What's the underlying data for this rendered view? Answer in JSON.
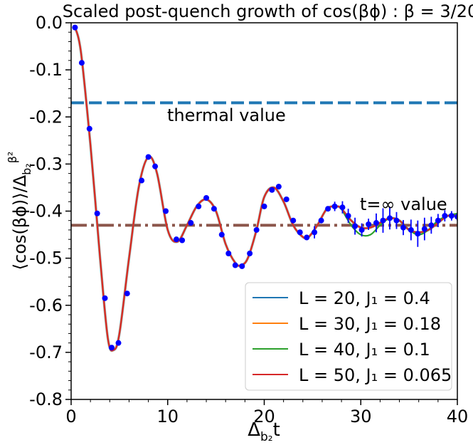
{
  "chart_data": {
    "type": "line",
    "title": "Scaled post-quench growth of cos(βϕ) : β = 3/20",
    "xlabel": "Δb₂t",
    "ylabel": "⟨cos(βϕ)⟩/Δb₂^β²",
    "xlim": [
      0,
      40
    ],
    "ylim": [
      -0.8,
      0.0
    ],
    "xticks": [
      0,
      10,
      20,
      30,
      40
    ],
    "yticks": [
      0.0,
      -0.1,
      -0.2,
      -0.3,
      -0.4,
      -0.5,
      -0.6,
      -0.7,
      -0.8
    ],
    "ytick_labels": [
      "0.0",
      "-0.1",
      "-0.2",
      "-0.3",
      "-0.4",
      "-0.5",
      "-0.6",
      "-0.7",
      "-0.8"
    ],
    "grid": false,
    "legend_position": "bottom-right",
    "legend": [
      {
        "label": "L = 20, J₁ = 0.4",
        "color": "#1f77b4"
      },
      {
        "label": "L = 30, J₁ = 0.18",
        "color": "#ff7f0e"
      },
      {
        "label": "L = 40, J₁ = 0.1",
        "color": "#2ca02c"
      },
      {
        "label": "L = 50, J₁ = 0.065",
        "color": "#d62728"
      }
    ],
    "reference_lines": [
      {
        "label": "thermal value",
        "y": -0.17,
        "color": "#1f77b4",
        "style": "dashed"
      },
      {
        "label": "t=∞ value",
        "y": -0.43,
        "color": "#8c564b",
        "style": "dashdot"
      }
    ],
    "main_curve": {
      "color": "#d62728",
      "x": [
        0.3,
        1,
        2,
        3,
        3.8,
        4.4,
        5,
        6,
        7,
        8,
        8.9,
        10,
        11,
        12,
        13,
        14,
        15,
        16,
        17,
        17.6,
        18.3,
        19.2,
        20,
        21,
        22,
        23,
        24,
        24.6,
        25.5,
        26.5,
        27.5,
        28,
        29,
        30,
        31,
        32,
        33,
        34,
        35,
        36,
        37,
        38,
        39,
        40
      ],
      "y": [
        -0.005,
        -0.06,
        -0.26,
        -0.5,
        -0.67,
        -0.695,
        -0.66,
        -0.5,
        -0.35,
        -0.285,
        -0.32,
        -0.44,
        -0.465,
        -0.43,
        -0.39,
        -0.375,
        -0.4,
        -0.47,
        -0.51,
        -0.515,
        -0.5,
        -0.44,
        -0.37,
        -0.35,
        -0.38,
        -0.43,
        -0.455,
        -0.455,
        -0.43,
        -0.395,
        -0.39,
        -0.395,
        -0.42,
        -0.435,
        -0.435,
        -0.425,
        -0.415,
        -0.42,
        -0.44,
        -0.445,
        -0.44,
        -0.425,
        -0.41,
        -0.41
      ]
    },
    "green_deviation": {
      "color": "#2ca02c",
      "x": [
        28,
        29,
        30,
        31,
        32,
        33,
        34,
        35,
        36,
        37,
        38,
        39,
        40
      ],
      "y": [
        -0.395,
        -0.43,
        -0.45,
        -0.45,
        -0.43,
        -0.415,
        -0.42,
        -0.44,
        -0.45,
        -0.44,
        -0.42,
        -0.41,
        -0.405
      ]
    },
    "points": {
      "color": "#0000ff",
      "x": [
        0.4,
        1.1,
        1.9,
        2.7,
        3.5,
        4.2,
        4.9,
        5.8,
        7.3,
        8.0,
        8.7,
        9.8,
        10.9,
        11.5,
        12.4,
        13.2,
        14.0,
        14.8,
        15.6,
        16.3,
        17.0,
        17.7,
        18.5,
        19.2,
        20.0,
        20.8,
        21.5,
        22.3,
        23.0,
        23.7,
        24.4,
        25.2,
        25.9,
        26.6,
        27.3,
        28.1,
        28.7,
        29.4,
        30.1,
        30.8,
        31.6,
        32.3,
        33.0,
        33.7,
        34.4,
        35.2,
        35.9,
        36.6,
        37.3,
        38.0,
        38.7,
        39.4,
        40.0
      ],
      "y": [
        -0.01,
        -0.085,
        -0.225,
        -0.405,
        -0.585,
        -0.69,
        -0.68,
        -0.575,
        -0.335,
        -0.285,
        -0.305,
        -0.4,
        -0.46,
        -0.462,
        -0.425,
        -0.39,
        -0.372,
        -0.395,
        -0.45,
        -0.49,
        -0.515,
        -0.517,
        -0.49,
        -0.44,
        -0.39,
        -0.355,
        -0.348,
        -0.375,
        -0.42,
        -0.445,
        -0.456,
        -0.445,
        -0.42,
        -0.395,
        -0.39,
        -0.392,
        -0.41,
        -0.432,
        -0.44,
        -0.428,
        -0.425,
        -0.42,
        -0.415,
        -0.42,
        -0.435,
        -0.44,
        -0.448,
        -0.438,
        -0.43,
        -0.42,
        -0.41,
        -0.41,
        -0.412
      ],
      "err": [
        0,
        0,
        0,
        0,
        0,
        0,
        0,
        0,
        0,
        0,
        0,
        0,
        0,
        0,
        0,
        0,
        0,
        0,
        0,
        0,
        0,
        0,
        0,
        0,
        0,
        0,
        0,
        0,
        0,
        0,
        0,
        0.013,
        0,
        0,
        0.01,
        0.013,
        0.015,
        0.018,
        0.014,
        0.012,
        0.02,
        0.026,
        0.024,
        0.018,
        0.016,
        0.022,
        0.028,
        0.024,
        0.018,
        0.014,
        0.012,
        0.01,
        0.008
      ]
    }
  }
}
